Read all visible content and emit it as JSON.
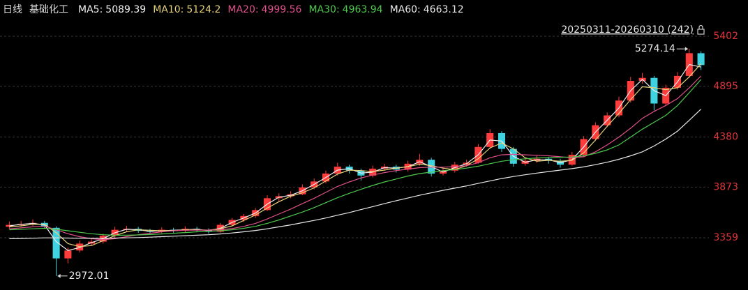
{
  "chart_data": {
    "type": "candlestick",
    "period": "日线",
    "title": "基础化工",
    "range_label": "20250311-20260310 (242)",
    "up_color": "#ff3c3c",
    "down_color": "#3fd2e0",
    "ylim": [
      2829.6,
      5769.6
    ],
    "yticks": [
      3359,
      3873,
      4380,
      4895,
      5402
    ],
    "grid": true,
    "ohlc": [
      [
        3470,
        3525,
        3450,
        3490
      ],
      [
        3490,
        3530,
        3470,
        3500
      ],
      [
        3500,
        3545,
        3480,
        3510
      ],
      [
        3510,
        3530,
        3450,
        3470
      ],
      [
        3460,
        3475,
        2972.01,
        3150
      ],
      [
        3150,
        3260,
        3100,
        3230
      ],
      [
        3230,
        3330,
        3210,
        3300
      ],
      [
        3300,
        3350,
        3280,
        3320
      ],
      [
        3320,
        3400,
        3300,
        3380
      ],
      [
        3380,
        3470,
        3360,
        3440
      ],
      [
        3440,
        3480,
        3420,
        3450
      ],
      [
        3450,
        3470,
        3410,
        3430
      ],
      [
        3430,
        3450,
        3400,
        3420
      ],
      [
        3420,
        3465,
        3405,
        3440
      ],
      [
        3440,
        3460,
        3410,
        3430
      ],
      [
        3430,
        3475,
        3415,
        3450
      ],
      [
        3450,
        3470,
        3420,
        3440
      ],
      [
        3440,
        3455,
        3400,
        3420
      ],
      [
        3420,
        3510,
        3410,
        3490
      ],
      [
        3490,
        3560,
        3480,
        3540
      ],
      [
        3540,
        3600,
        3520,
        3580
      ],
      [
        3580,
        3660,
        3560,
        3640
      ],
      [
        3640,
        3790,
        3630,
        3760
      ],
      [
        3760,
        3810,
        3730,
        3780
      ],
      [
        3780,
        3830,
        3760,
        3800
      ],
      [
        3800,
        3900,
        3790,
        3870
      ],
      [
        3870,
        3960,
        3850,
        3930
      ],
      [
        3930,
        4040,
        3910,
        4010
      ],
      [
        4010,
        4120,
        3990,
        4080
      ],
      [
        4080,
        4100,
        4010,
        4040
      ],
      [
        4040,
        4060,
        3940,
        3990
      ],
      [
        3990,
        4090,
        3970,
        4060
      ],
      [
        4060,
        4110,
        4040,
        4080
      ],
      [
        4080,
        4100,
        4020,
        4050
      ],
      [
        4050,
        4140,
        4030,
        4110
      ],
      [
        4110,
        4210,
        4090,
        4150
      ],
      [
        4150,
        4170,
        3980,
        4010
      ],
      [
        4010,
        4070,
        3990,
        4040
      ],
      [
        4040,
        4130,
        4020,
        4100
      ],
      [
        4100,
        4150,
        4080,
        4120
      ],
      [
        4120,
        4310,
        4110,
        4280
      ],
      [
        4280,
        4460,
        4260,
        4420
      ],
      [
        4420,
        4440,
        4230,
        4260
      ],
      [
        4260,
        4280,
        4080,
        4110
      ],
      [
        4110,
        4170,
        4090,
        4140
      ],
      [
        4140,
        4190,
        4120,
        4160
      ],
      [
        4160,
        4180,
        4110,
        4140
      ],
      [
        4140,
        4160,
        4070,
        4100
      ],
      [
        4100,
        4230,
        4090,
        4200
      ],
      [
        4200,
        4390,
        4180,
        4360
      ],
      [
        4360,
        4530,
        4340,
        4500
      ],
      [
        4500,
        4630,
        4480,
        4600
      ],
      [
        4600,
        4790,
        4580,
        4750
      ],
      [
        4750,
        4990,
        4730,
        4950
      ],
      [
        4950,
        5030,
        4920,
        4980
      ],
      [
        4980,
        5000,
        4650,
        4720
      ],
      [
        4720,
        4910,
        4700,
        4880
      ],
      [
        4880,
        5040,
        4860,
        5000
      ],
      [
        5000,
        5274.14,
        4980,
        5230
      ],
      [
        5230,
        5250,
        5060,
        5110
      ]
    ],
    "series": [
      {
        "name": "MA5:",
        "color": "#f0f0f0",
        "values": [
          3480,
          3495,
          3505,
          3490,
          3320,
          3230,
          3260,
          3310,
          3350,
          3410,
          3445,
          3440,
          3425,
          3430,
          3435,
          3440,
          3445,
          3430,
          3455,
          3515,
          3560,
          3610,
          3700,
          3770,
          3790,
          3835,
          3900,
          3970,
          4045,
          4060,
          4015,
          4025,
          4070,
          4065,
          4080,
          4130,
          4080,
          4025,
          4070,
          4110,
          4200,
          4350,
          4340,
          4185,
          4125,
          4150,
          4150,
          4120,
          4150,
          4280,
          4430,
          4550,
          4675,
          4850,
          4965,
          4850,
          4800,
          4940,
          5115,
          5089.39
        ]
      },
      {
        "name": "MA10:",
        "color": "#e6d27a",
        "values": [
          3470,
          3480,
          3495,
          3495,
          3410,
          3300,
          3270,
          3280,
          3330,
          3380,
          3420,
          3440,
          3435,
          3430,
          3430,
          3440,
          3440,
          3437,
          3450,
          3480,
          3535,
          3590,
          3660,
          3725,
          3780,
          3815,
          3865,
          3935,
          4005,
          4045,
          4040,
          4030,
          4045,
          4065,
          4080,
          4105,
          4090,
          4065,
          4050,
          4090,
          4160,
          4270,
          4320,
          4260,
          4170,
          4135,
          4145,
          4135,
          4145,
          4220,
          4350,
          4490,
          4620,
          4760,
          4890,
          4880,
          4860,
          4880,
          4990,
          5124.2
        ]
      },
      {
        "name": "MA20:",
        "color": "#e0508a",
        "values": [
          3450,
          3460,
          3470,
          3478,
          3440,
          3400,
          3370,
          3350,
          3340,
          3350,
          3370,
          3390,
          3405,
          3420,
          3430,
          3435,
          3437,
          3437,
          3440,
          3452,
          3475,
          3505,
          3550,
          3600,
          3650,
          3705,
          3760,
          3820,
          3880,
          3925,
          3965,
          3995,
          4020,
          4040,
          4055,
          4070,
          4075,
          4075,
          4080,
          4090,
          4120,
          4170,
          4200,
          4205,
          4200,
          4195,
          4190,
          4180,
          4170,
          4180,
          4230,
          4300,
          4380,
          4470,
          4570,
          4640,
          4700,
          4770,
          4880,
          4999.56
        ]
      },
      {
        "name": "MA30:",
        "color": "#4ec94e",
        "values": [
          3440,
          3445,
          3450,
          3455,
          3445,
          3430,
          3415,
          3400,
          3390,
          3385,
          3385,
          3388,
          3392,
          3398,
          3405,
          3412,
          3420,
          3425,
          3430,
          3440,
          3455,
          3475,
          3505,
          3540,
          3580,
          3620,
          3665,
          3715,
          3765,
          3810,
          3850,
          3890,
          3925,
          3955,
          3985,
          4010,
          4025,
          4040,
          4050,
          4065,
          4085,
          4110,
          4135,
          4150,
          4160,
          4168,
          4172,
          4175,
          4178,
          4190,
          4215,
          4250,
          4300,
          4380,
          4460,
          4530,
          4600,
          4700,
          4830,
          4963.94
        ]
      },
      {
        "name": "MA60:",
        "color": "#e8e8e8",
        "values": [
          3350,
          3352,
          3355,
          3358,
          3358,
          3356,
          3354,
          3353,
          3354,
          3356,
          3358,
          3361,
          3365,
          3370,
          3375,
          3380,
          3385,
          3390,
          3398,
          3408,
          3420,
          3433,
          3450,
          3470,
          3490,
          3512,
          3535,
          3560,
          3588,
          3615,
          3645,
          3675,
          3705,
          3735,
          3762,
          3790,
          3815,
          3840,
          3862,
          3885,
          3910,
          3935,
          3960,
          3980,
          3998,
          4015,
          4030,
          4045,
          4060,
          4078,
          4100,
          4125,
          4155,
          4190,
          4230,
          4290,
          4360,
          4440,
          4550,
          4663.12
        ]
      }
    ]
  }
}
